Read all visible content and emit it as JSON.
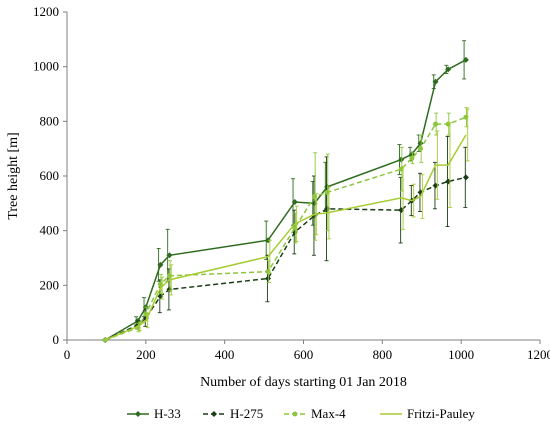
{
  "chart_data": {
    "type": "line",
    "title": "",
    "xlabel": "Number of days starting 01 Jan 2018",
    "ylabel": "Tree height [m]",
    "xlim": [
      0,
      1200
    ],
    "ylim": [
      0,
      1200
    ],
    "xticks": [
      0,
      200,
      400,
      600,
      800,
      1000,
      1200
    ],
    "yticks": [
      0,
      200,
      400,
      600,
      800,
      1000,
      1200
    ],
    "xtick_labels": [
      "0",
      "200",
      "400",
      "600",
      "800",
      "1000",
      "1200"
    ],
    "ytick_labels": [
      "0",
      "200",
      "400",
      "600",
      "800",
      "1000",
      "1200"
    ],
    "grid": false,
    "legend_position": "bottom",
    "series": [
      {
        "name": "H-33",
        "color": "#2e6b1f",
        "dash": "solid",
        "marker": "diamond",
        "x": [
          97,
          180,
          200,
          237,
          260,
          510,
          578,
          628,
          660,
          848,
          875,
          897,
          935,
          967,
          1012
        ],
        "y": [
          0,
          70,
          120,
          275,
          310,
          365,
          505,
          500,
          560,
          660,
          680,
          720,
          945,
          990,
          1025
        ],
        "err": [
          0,
          15,
          35,
          60,
          95,
          70,
          85,
          80,
          90,
          55,
          25,
          30,
          25,
          15,
          70
        ]
      },
      {
        "name": "H-275",
        "color": "#1a3d17",
        "dash": "dashed",
        "marker": "diamond",
        "x": [
          97,
          180,
          200,
          237,
          260,
          510,
          578,
          628,
          660,
          848,
          875,
          897,
          935,
          967,
          1012
        ],
        "y": [
          0,
          55,
          80,
          160,
          185,
          225,
          395,
          455,
          480,
          475,
          510,
          540,
          565,
          580,
          595
        ],
        "err": [
          0,
          15,
          30,
          60,
          75,
          85,
          80,
          145,
          190,
          120,
          55,
          70,
          85,
          165,
          110
        ]
      },
      {
        "name": "Max-4",
        "color": "#8cc63f",
        "dash": "dashed",
        "marker": "circle",
        "x": [
          97,
          180,
          200,
          237,
          260,
          510,
          578,
          628,
          660,
          848,
          875,
          897,
          935,
          967,
          1012
        ],
        "y": [
          0,
          45,
          95,
          205,
          235,
          250,
          410,
          525,
          540,
          625,
          665,
          700,
          790,
          790,
          815
        ],
        "err": [
          0,
          15,
          25,
          35,
          55,
          40,
          55,
          160,
          140,
          80,
          20,
          50,
          40,
          40,
          35
        ]
      },
      {
        "name": "Fritzi-Pauley",
        "color": "#a6cc33",
        "dash": "solid",
        "marker": "none",
        "x": [
          97,
          180,
          200,
          237,
          260,
          510,
          578,
          628,
          660,
          848,
          875,
          897,
          935,
          967,
          1012
        ],
        "y": [
          0,
          50,
          70,
          190,
          220,
          305,
          425,
          460,
          465,
          520,
          510,
          525,
          640,
          640,
          750
        ],
        "err": [
          0,
          15,
          25,
          40,
          55,
          60,
          65,
          75,
          95,
          115,
          60,
          80,
          125,
          155,
          95
        ]
      }
    ]
  }
}
